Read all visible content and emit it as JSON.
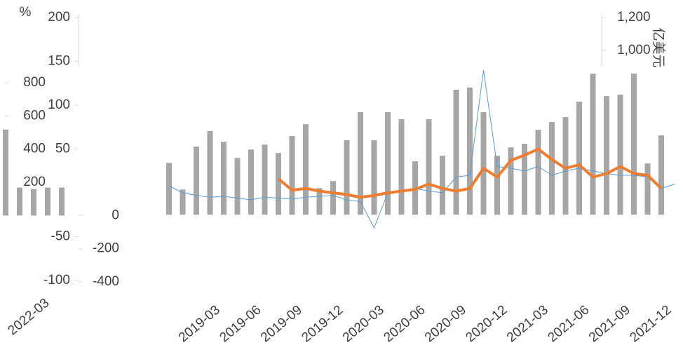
{
  "chart_data": [
    {
      "type": "combo",
      "unit_left": "%",
      "unit_right": "亿美元",
      "categories": [
        null,
        null,
        null,
        "2019-03",
        null,
        null,
        "2019-06",
        null,
        null,
        "2019-09",
        null,
        null,
        "2019-12",
        null,
        null,
        "2020-03",
        null,
        null,
        "2020-06",
        null,
        null,
        "2020-09",
        null,
        null,
        "2020-12",
        null,
        null,
        "2021-03",
        null,
        null,
        "2021-06",
        null,
        null,
        "2021-09",
        null,
        null,
        "2021-12",
        null
      ],
      "ylim": [
        -100,
        200
      ],
      "yticks": [
        -100,
        -50,
        50,
        100,
        150,
        200
      ],
      "y2lim": [
        -400,
        1200
      ],
      "y2ticks": [
        {
          "value": 1000,
          "label": "1,000"
        },
        {
          "value": 1200,
          "label": "1,200"
        }
      ],
      "series": [
        {
          "type": "bar",
          "axis": "y2",
          "color": "#a6a6a6",
          "values": [
            316,
            154,
            415,
            509,
            444,
            346,
            397,
            427,
            376,
            479,
            551,
            162,
            205,
            453,
            624,
            453,
            624,
            581,
            325,
            581,
            359,
            761,
            774,
            624,
            359,
            410,
            432,
            517,
            564,
            594,
            688,
            859,
            722,
            731,
            859,
            312,
            483,
            null
          ]
        },
        {
          "type": "line",
          "color": "#5b9bd5",
          "width": 1,
          "values": [
            8,
            0,
            -3,
            -5,
            -4,
            -6,
            -8,
            -5,
            -6,
            -7,
            -5,
            -4,
            -3,
            -8,
            -10,
            -40,
            0,
            3,
            5,
            2,
            0,
            18,
            20,
            140,
            30,
            28,
            25,
            30,
            20,
            25,
            28,
            25,
            22,
            20,
            20,
            18,
            5,
            10
          ]
        },
        {
          "type": "line",
          "color": "#ed7d31",
          "width": 4,
          "values": [
            null,
            null,
            null,
            null,
            null,
            null,
            null,
            null,
            16,
            3,
            5,
            2,
            0,
            -2,
            -5,
            -3,
            0,
            2,
            4,
            10,
            5,
            2,
            5,
            28,
            18,
            37,
            43,
            50,
            38,
            28,
            32,
            18,
            22,
            30,
            22,
            20,
            5,
            null
          ]
        }
      ]
    },
    {
      "type": "bar",
      "categories": [
        null,
        "2022-03",
        null,
        null,
        null
      ],
      "ylim": [
        -400,
        800
      ],
      "yticks": [
        800,
        600,
        400,
        200,
        0,
        -200,
        -400
      ],
      "color": "#a6a6a6",
      "values": [
        518,
        168,
        160,
        168,
        168
      ]
    }
  ]
}
